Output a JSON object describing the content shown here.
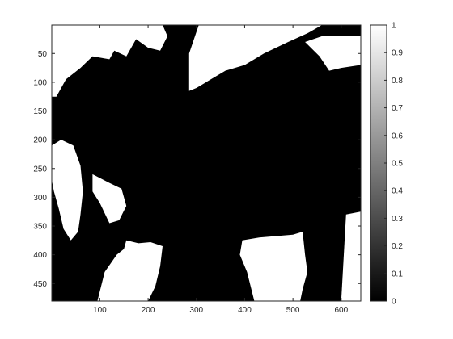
{
  "chart_data": {
    "type": "heatmap",
    "colormap": "gray",
    "x": {
      "ticks": [
        100,
        200,
        300,
        400,
        500,
        600
      ],
      "range": [
        0.5,
        640.5
      ]
    },
    "y": {
      "ticks": [
        50,
        100,
        150,
        200,
        250,
        300,
        350,
        400,
        450
      ],
      "range": [
        0.5,
        480.5
      ],
      "direction": "reverse"
    },
    "colorbar": {
      "ticks": [
        0,
        0.1,
        0.2,
        0.3,
        0.4,
        0.5,
        0.6,
        0.7,
        0.8,
        0.9,
        1
      ],
      "tick_labels": [
        "0",
        "0.1",
        "0.2",
        "0.3",
        "0.4",
        "0.5",
        "0.6",
        "0.7",
        "0.8",
        "0.9",
        "1"
      ],
      "range": [
        0,
        1
      ]
    },
    "image": {
      "description": "binary mask, values 0 (black) or 1 (white)",
      "values_present": [
        0,
        1
      ],
      "white_regions": [
        {
          "name": "top-left",
          "points": [
            [
              0.5,
              0.5
            ],
            [
              230,
              0.5
            ],
            [
              240,
              20
            ],
            [
              225,
              45
            ],
            [
              200,
              40
            ],
            [
              175,
              25
            ],
            [
              155,
              55
            ],
            [
              130,
              45
            ],
            [
              120,
              60
            ],
            [
              85,
              55
            ],
            [
              60,
              75
            ],
            [
              30,
              95
            ],
            [
              10,
              125
            ],
            [
              0.5,
              125
            ]
          ]
        },
        {
          "name": "top-middle",
          "points": [
            [
              305,
              0.5
            ],
            [
              560,
              0.5
            ],
            [
              530,
              15
            ],
            [
              490,
              30
            ],
            [
              440,
              50
            ],
            [
              400,
              70
            ],
            [
              360,
              80
            ],
            [
              330,
              95
            ],
            [
              300,
              110
            ],
            [
              285,
              115
            ],
            [
              285,
              50
            ]
          ]
        },
        {
          "name": "top-right-blob",
          "points": [
            [
              525,
              30
            ],
            [
              560,
              20
            ],
            [
              640,
              20
            ],
            [
              640,
              70
            ],
            [
              600,
              75
            ],
            [
              575,
              80
            ],
            [
              555,
              55
            ]
          ]
        },
        {
          "name": "left-strip",
          "points": [
            [
              0.5,
              210
            ],
            [
              20,
              200
            ],
            [
              45,
              210
            ],
            [
              60,
              245
            ],
            [
              65,
              290
            ],
            [
              60,
              330
            ],
            [
              55,
              360
            ],
            [
              40,
              375
            ],
            [
              25,
              355
            ],
            [
              15,
              320
            ],
            [
              5,
              290
            ],
            [
              0.5,
              270
            ]
          ]
        },
        {
          "name": "left-inner",
          "points": [
            [
              85,
              260
            ],
            [
              120,
              275
            ],
            [
              145,
              285
            ],
            [
              155,
              315
            ],
            [
              140,
              340
            ],
            [
              120,
              345
            ],
            [
              100,
              310
            ],
            [
              85,
              290
            ]
          ]
        },
        {
          "name": "bottom-left",
          "points": [
            [
              155,
              375
            ],
            [
              180,
              380
            ],
            [
              205,
              378
            ],
            [
              230,
              385
            ],
            [
              225,
              420
            ],
            [
              215,
              455
            ],
            [
              200,
              480.5
            ],
            [
              95,
              480.5
            ],
            [
              110,
              430
            ],
            [
              135,
              400
            ],
            [
              150,
              390
            ]
          ]
        },
        {
          "name": "bottom-middle",
          "points": [
            [
              395,
              375
            ],
            [
              430,
              370
            ],
            [
              460,
              368
            ],
            [
              500,
              365
            ],
            [
              520,
              360
            ],
            [
              525,
              400
            ],
            [
              530,
              430
            ],
            [
              520,
              460
            ],
            [
              515,
              480.5
            ],
            [
              420,
              480.5
            ],
            [
              405,
              430
            ],
            [
              390,
              400
            ]
          ]
        },
        {
          "name": "right-edge",
          "points": [
            [
              610,
              330
            ],
            [
              640,
              325
            ],
            [
              640,
              480.5
            ],
            [
              600,
              480.5
            ]
          ]
        }
      ]
    }
  }
}
